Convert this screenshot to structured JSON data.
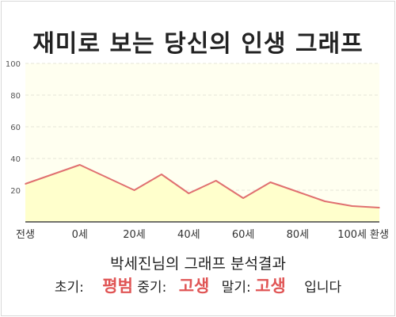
{
  "chart_data": {
    "type": "area",
    "title": "재미로 보는 당신의 인생 그래프",
    "categories": [
      "전생",
      "0세",
      "20세",
      "40세",
      "60세",
      "80세",
      "100세",
      "환생"
    ],
    "y_ticks": [
      "20",
      "40",
      "60",
      "80",
      "100"
    ],
    "ylim": [
      0,
      100
    ],
    "x": [
      -20,
      0,
      20,
      30,
      40,
      50,
      60,
      70,
      80,
      90,
      100,
      110
    ],
    "values": [
      24,
      36,
      20,
      30,
      18,
      26,
      15,
      25,
      19,
      13,
      10,
      9
    ],
    "line_color": "#e07070",
    "fill_color": "#ffffcc",
    "plot_bg": "#fffff0",
    "grid": true
  },
  "analysis": {
    "heading": "박세진님의 그래프 분석결과",
    "early_label": "초기:",
    "early_value": "평범",
    "mid_label": "중기:",
    "mid_value": "고생",
    "late_label": "말기:",
    "late_value": "고생",
    "suffix": "입니다"
  }
}
